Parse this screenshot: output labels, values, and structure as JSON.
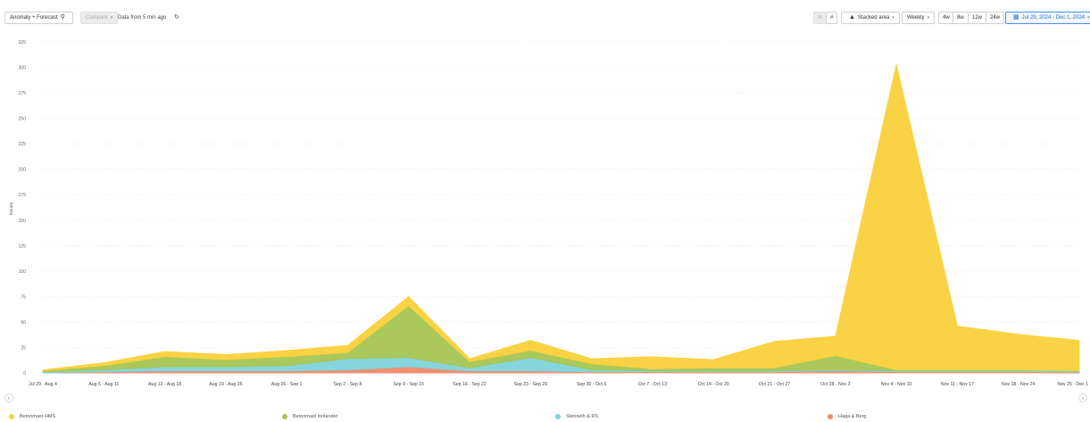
{
  "toolbar": {
    "anomaly_label": "Anomaly + Forecast",
    "compare_label": "Compare",
    "data_freshness": "Data from 5 min ago",
    "percent_label": "%",
    "count_label": "#",
    "chart_type_label": "Stacked area",
    "interval_label": "Weekly",
    "range_4w": "4w",
    "range_8w": "8w",
    "range_12w": "12w",
    "range_24w": "24w",
    "date_range_label": "Jul 29, 2024 - Dec 1, 2024"
  },
  "nav": {
    "prev": "‹",
    "next": "›"
  },
  "colors": {
    "betonmast_hms": "#f9d13b",
    "betonmast_innlandet": "#a5c552",
    "stenseth_rs": "#7fd3db",
    "haga_berg": "#f08a6a"
  },
  "chart_data": {
    "type": "area",
    "stacked": true,
    "title": "",
    "xlabel": "",
    "ylabel": "Issues",
    "ylim": [
      0,
      325
    ],
    "yticks": [
      0,
      25,
      50,
      75,
      100,
      125,
      150,
      175,
      200,
      225,
      250,
      275,
      300,
      325
    ],
    "grid": true,
    "legend_position": "bottom",
    "categories": [
      "Jul 29 - Aug 4",
      "Aug 5 - Aug 11",
      "Aug 12 - Aug 18",
      "Aug 19 - Aug 25",
      "Aug 26 - Sep 1",
      "Sep 2 - Sep 8",
      "Sep 9 - Sep 15",
      "Sep 16 - Sep 22",
      "Sep 23 - Sep 29",
      "Sep 30 - Oct 6",
      "Oct 7 - Oct 13",
      "Oct 14 - Oct 20",
      "Oct 21 - Oct 27",
      "Oct 28 - Nov 3",
      "Nov 4 - Nov 10",
      "Nov 11 - Nov 17",
      "Nov 18 - Nov 24",
      "Nov 25 - Dec 1"
    ],
    "series": [
      {
        "name": "Haga & Berg",
        "color": "#f08a6a",
        "values": [
          0,
          1,
          2,
          2,
          2,
          3,
          6,
          2,
          2,
          1,
          1,
          1,
          1,
          2,
          1,
          1,
          1,
          1
        ]
      },
      {
        "name": "Stenseth & RS",
        "color": "#7fd3db",
        "values": [
          1,
          2,
          4,
          4,
          5,
          11,
          9,
          3,
          13,
          2,
          1,
          1,
          1,
          1,
          1,
          1,
          1,
          1
        ]
      },
      {
        "name": "Betonmast innlandet",
        "color": "#a5c552",
        "values": [
          1,
          4,
          10,
          7,
          9,
          6,
          51,
          6,
          7,
          6,
          2,
          3,
          3,
          14,
          1,
          1,
          1,
          0
        ]
      },
      {
        "name": "Betonmast HMS",
        "color": "#f9d13b",
        "values": [
          1,
          3,
          5,
          5,
          6,
          7,
          9,
          3,
          10,
          5,
          12,
          8,
          26,
          19,
          300,
          43,
          35,
          30
        ]
      }
    ]
  },
  "legend": [
    {
      "label": "Betonmast HMS",
      "color": "#f9d13b"
    },
    {
      "label": "Betonmast innlandet",
      "color": "#a5c552"
    },
    {
      "label": "Stenseth & RS",
      "color": "#7fd3db"
    },
    {
      "label": "Haga & Berg",
      "color": "#f08a6a"
    }
  ]
}
